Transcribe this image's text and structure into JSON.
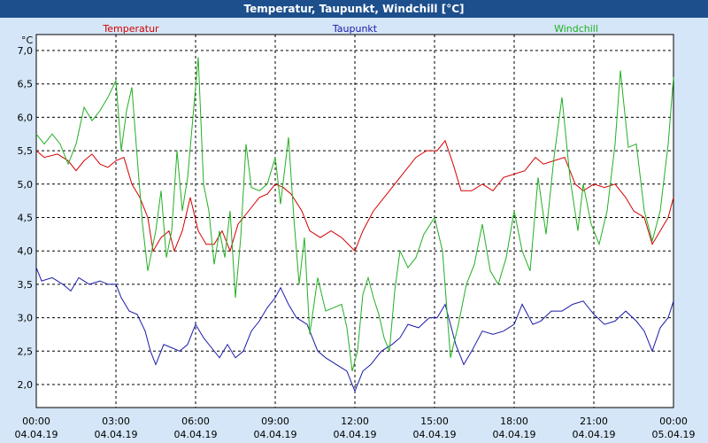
{
  "window": {
    "title": "Temperatur, Taupunkt, Windchill [°C]"
  },
  "colors": {
    "temperatur": "#d40000",
    "taupunkt": "#1a1aa8",
    "windchill": "#22b022",
    "background": "#d4e6f7",
    "titlebar": "#1d4f8c"
  },
  "chart_data": {
    "type": "line",
    "title": "Temperatur, Taupunkt, Windchill [°C]",
    "unit_label": "°C",
    "ylim": [
      1.8,
      7.0
    ],
    "ytick_labels": [
      "7,0",
      "6,5",
      "6,0",
      "5,5",
      "5,0",
      "4,5",
      "4,0",
      "3,5",
      "3,0",
      "2,5",
      "2,0"
    ],
    "ytick_values": [
      7.0,
      6.5,
      6.0,
      5.5,
      5.0,
      4.5,
      4.0,
      3.5,
      3.0,
      2.5,
      2.0
    ],
    "xlim": [
      0,
      24
    ],
    "xtick_values": [
      0,
      3,
      6,
      9,
      12,
      15,
      18,
      21,
      24
    ],
    "xtick_times": [
      "00:00",
      "03:00",
      "06:00",
      "09:00",
      "12:00",
      "15:00",
      "18:00",
      "21:00",
      "00:00"
    ],
    "xtick_dates": [
      "04.04.19",
      "04.04.19",
      "04.04.19",
      "04.04.19",
      "04.04.19",
      "04.04.19",
      "04.04.19",
      "04.04.19",
      "05.04.19"
    ],
    "grid": true,
    "legend_position": "top",
    "series": [
      {
        "name": "Temperatur",
        "color": "#d40000",
        "points": [
          [
            0,
            5.5
          ],
          [
            0.3,
            5.4
          ],
          [
            0.8,
            5.45
          ],
          [
            1.2,
            5.35
          ],
          [
            1.5,
            5.2
          ],
          [
            1.8,
            5.35
          ],
          [
            2.1,
            5.45
          ],
          [
            2.4,
            5.3
          ],
          [
            2.7,
            5.25
          ],
          [
            3.0,
            5.35
          ],
          [
            3.3,
            5.4
          ],
          [
            3.6,
            5.0
          ],
          [
            3.9,
            4.8
          ],
          [
            4.2,
            4.5
          ],
          [
            4.4,
            4.0
          ],
          [
            4.7,
            4.2
          ],
          [
            5.0,
            4.3
          ],
          [
            5.2,
            4.0
          ],
          [
            5.5,
            4.3
          ],
          [
            5.8,
            4.8
          ],
          [
            6.1,
            4.3
          ],
          [
            6.4,
            4.1
          ],
          [
            6.7,
            4.1
          ],
          [
            7.0,
            4.3
          ],
          [
            7.3,
            4.0
          ],
          [
            7.6,
            4.4
          ],
          [
            8.0,
            4.6
          ],
          [
            8.4,
            4.8
          ],
          [
            8.7,
            4.85
          ],
          [
            9.0,
            5.0
          ],
          [
            9.3,
            4.95
          ],
          [
            9.6,
            4.85
          ],
          [
            10.0,
            4.6
          ],
          [
            10.3,
            4.3
          ],
          [
            10.7,
            4.2
          ],
          [
            11.1,
            4.3
          ],
          [
            11.5,
            4.2
          ],
          [
            12.0,
            4.0
          ],
          [
            12.3,
            4.3
          ],
          [
            12.7,
            4.6
          ],
          [
            13.1,
            4.8
          ],
          [
            13.5,
            5.0
          ],
          [
            13.9,
            5.2
          ],
          [
            14.3,
            5.4
          ],
          [
            14.7,
            5.5
          ],
          [
            15.1,
            5.5
          ],
          [
            15.4,
            5.65
          ],
          [
            15.7,
            5.3
          ],
          [
            16.0,
            4.9
          ],
          [
            16.4,
            4.9
          ],
          [
            16.8,
            5.0
          ],
          [
            17.2,
            4.9
          ],
          [
            17.6,
            5.1
          ],
          [
            18.0,
            5.15
          ],
          [
            18.4,
            5.2
          ],
          [
            18.8,
            5.4
          ],
          [
            19.1,
            5.3
          ],
          [
            19.5,
            5.35
          ],
          [
            19.9,
            5.4
          ],
          [
            20.3,
            5.0
          ],
          [
            20.6,
            4.9
          ],
          [
            21.0,
            5.0
          ],
          [
            21.4,
            4.95
          ],
          [
            21.8,
            5.0
          ],
          [
            22.2,
            4.8
          ],
          [
            22.5,
            4.6
          ],
          [
            22.9,
            4.5
          ],
          [
            23.2,
            4.1
          ],
          [
            23.5,
            4.3
          ],
          [
            23.8,
            4.5
          ],
          [
            24.0,
            4.8
          ]
        ]
      },
      {
        "name": "Taupunkt",
        "color": "#1a1aa8",
        "points": [
          [
            0,
            3.75
          ],
          [
            0.2,
            3.55
          ],
          [
            0.6,
            3.6
          ],
          [
            1.0,
            3.5
          ],
          [
            1.3,
            3.4
          ],
          [
            1.6,
            3.6
          ],
          [
            2.0,
            3.5
          ],
          [
            2.4,
            3.55
          ],
          [
            2.7,
            3.5
          ],
          [
            3.0,
            3.5
          ],
          [
            3.2,
            3.3
          ],
          [
            3.5,
            3.1
          ],
          [
            3.8,
            3.05
          ],
          [
            4.1,
            2.8
          ],
          [
            4.3,
            2.5
          ],
          [
            4.5,
            2.3
          ],
          [
            4.8,
            2.6
          ],
          [
            5.1,
            2.55
          ],
          [
            5.4,
            2.5
          ],
          [
            5.7,
            2.6
          ],
          [
            6.0,
            2.9
          ],
          [
            6.3,
            2.7
          ],
          [
            6.6,
            2.55
          ],
          [
            6.9,
            2.4
          ],
          [
            7.2,
            2.6
          ],
          [
            7.5,
            2.4
          ],
          [
            7.8,
            2.5
          ],
          [
            8.1,
            2.8
          ],
          [
            8.4,
            2.95
          ],
          [
            8.7,
            3.15
          ],
          [
            9.0,
            3.3
          ],
          [
            9.2,
            3.45
          ],
          [
            9.5,
            3.2
          ],
          [
            9.8,
            3.0
          ],
          [
            10.2,
            2.9
          ],
          [
            10.6,
            2.5
          ],
          [
            10.9,
            2.4
          ],
          [
            11.3,
            2.3
          ],
          [
            11.7,
            2.2
          ],
          [
            12.0,
            1.9
          ],
          [
            12.3,
            2.2
          ],
          [
            12.6,
            2.3
          ],
          [
            13.0,
            2.5
          ],
          [
            13.4,
            2.6
          ],
          [
            13.7,
            2.7
          ],
          [
            14.0,
            2.9
          ],
          [
            14.4,
            2.85
          ],
          [
            14.8,
            3.0
          ],
          [
            15.1,
            3.0
          ],
          [
            15.4,
            3.2
          ],
          [
            15.8,
            2.6
          ],
          [
            16.1,
            2.3
          ],
          [
            16.4,
            2.5
          ],
          [
            16.8,
            2.8
          ],
          [
            17.2,
            2.75
          ],
          [
            17.6,
            2.8
          ],
          [
            18.0,
            2.9
          ],
          [
            18.3,
            3.2
          ],
          [
            18.7,
            2.9
          ],
          [
            19.0,
            2.95
          ],
          [
            19.4,
            3.1
          ],
          [
            19.8,
            3.1
          ],
          [
            20.2,
            3.2
          ],
          [
            20.6,
            3.25
          ],
          [
            21.0,
            3.05
          ],
          [
            21.4,
            2.9
          ],
          [
            21.8,
            2.95
          ],
          [
            22.2,
            3.1
          ],
          [
            22.6,
            2.95
          ],
          [
            22.9,
            2.8
          ],
          [
            23.2,
            2.5
          ],
          [
            23.5,
            2.85
          ],
          [
            23.8,
            3.0
          ],
          [
            24.0,
            3.25
          ]
        ]
      },
      {
        "name": "Windchill",
        "color": "#22b022",
        "points": [
          [
            0,
            5.75
          ],
          [
            0.3,
            5.6
          ],
          [
            0.6,
            5.75
          ],
          [
            0.9,
            5.6
          ],
          [
            1.2,
            5.3
          ],
          [
            1.5,
            5.6
          ],
          [
            1.8,
            6.15
          ],
          [
            2.1,
            5.95
          ],
          [
            2.4,
            6.1
          ],
          [
            2.7,
            6.3
          ],
          [
            3.0,
            6.55
          ],
          [
            3.2,
            5.5
          ],
          [
            3.4,
            6.1
          ],
          [
            3.6,
            6.45
          ],
          [
            3.8,
            5.4
          ],
          [
            4.0,
            4.4
          ],
          [
            4.2,
            3.7
          ],
          [
            4.5,
            4.3
          ],
          [
            4.7,
            4.9
          ],
          [
            4.9,
            3.9
          ],
          [
            5.1,
            4.3
          ],
          [
            5.3,
            5.5
          ],
          [
            5.5,
            4.6
          ],
          [
            5.7,
            5.1
          ],
          [
            5.9,
            6.0
          ],
          [
            6.1,
            6.9
          ],
          [
            6.3,
            5.0
          ],
          [
            6.5,
            4.6
          ],
          [
            6.7,
            3.8
          ],
          [
            6.9,
            4.3
          ],
          [
            7.1,
            3.9
          ],
          [
            7.3,
            4.6
          ],
          [
            7.5,
            3.3
          ],
          [
            7.7,
            4.2
          ],
          [
            7.9,
            5.6
          ],
          [
            8.1,
            4.95
          ],
          [
            8.4,
            4.9
          ],
          [
            8.7,
            5.0
          ],
          [
            9.0,
            5.4
          ],
          [
            9.2,
            4.7
          ],
          [
            9.5,
            5.7
          ],
          [
            9.7,
            4.5
          ],
          [
            9.9,
            3.5
          ],
          [
            10.1,
            4.2
          ],
          [
            10.3,
            2.75
          ],
          [
            10.6,
            3.6
          ],
          [
            10.9,
            3.1
          ],
          [
            11.2,
            3.15
          ],
          [
            11.5,
            3.2
          ],
          [
            11.7,
            2.85
          ],
          [
            11.9,
            2.2
          ],
          [
            12.1,
            2.5
          ],
          [
            12.3,
            3.35
          ],
          [
            12.5,
            3.6
          ],
          [
            12.7,
            3.3
          ],
          [
            12.9,
            3.05
          ],
          [
            13.1,
            2.7
          ],
          [
            13.3,
            2.5
          ],
          [
            13.5,
            3.4
          ],
          [
            13.7,
            4.0
          ],
          [
            14.0,
            3.75
          ],
          [
            14.3,
            3.9
          ],
          [
            14.6,
            4.25
          ],
          [
            15.0,
            4.5
          ],
          [
            15.3,
            4.0
          ],
          [
            15.6,
            2.4
          ],
          [
            15.9,
            2.9
          ],
          [
            16.2,
            3.5
          ],
          [
            16.5,
            3.8
          ],
          [
            16.8,
            4.4
          ],
          [
            17.1,
            3.7
          ],
          [
            17.4,
            3.5
          ],
          [
            17.7,
            3.9
          ],
          [
            18.0,
            4.6
          ],
          [
            18.3,
            4.0
          ],
          [
            18.6,
            3.7
          ],
          [
            18.9,
            5.1
          ],
          [
            19.2,
            4.25
          ],
          [
            19.5,
            5.4
          ],
          [
            19.8,
            6.3
          ],
          [
            20.1,
            5.1
          ],
          [
            20.4,
            4.3
          ],
          [
            20.6,
            5.0
          ],
          [
            20.9,
            4.4
          ],
          [
            21.2,
            4.1
          ],
          [
            21.5,
            4.6
          ],
          [
            21.8,
            5.6
          ],
          [
            22.0,
            6.7
          ],
          [
            22.3,
            5.55
          ],
          [
            22.6,
            5.6
          ],
          [
            22.9,
            4.6
          ],
          [
            23.2,
            4.15
          ],
          [
            23.5,
            4.6
          ],
          [
            23.8,
            5.6
          ],
          [
            24.0,
            6.6
          ]
        ]
      }
    ]
  }
}
